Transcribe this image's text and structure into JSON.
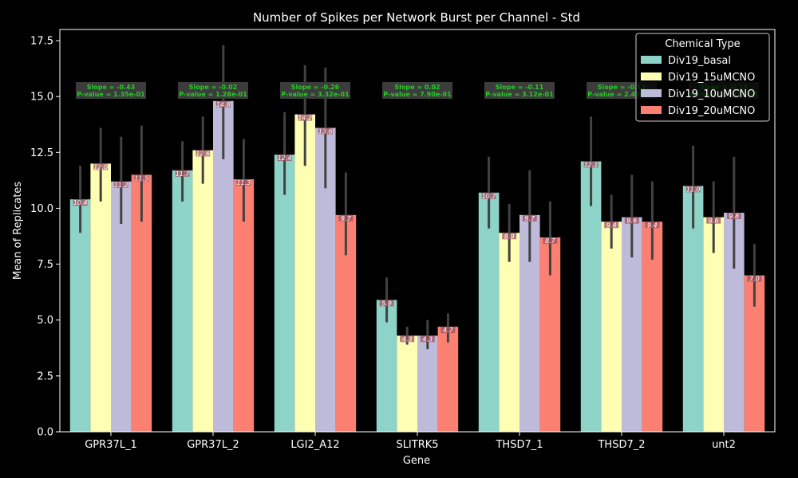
{
  "chart_data": {
    "type": "bar",
    "title": "Number of Spikes per Network Burst per Channel - Std",
    "xlabel": "Gene",
    "ylabel": "Mean of Replicates",
    "categories": [
      "GPR37L_1",
      "GPR37L_2",
      "LGI2_A12",
      "SLITRK5",
      "THSD7_1",
      "THSD7_2",
      "unt2"
    ],
    "ylim": [
      0,
      18
    ],
    "yticks": [
      0.0,
      2.5,
      5.0,
      7.5,
      10.0,
      12.5,
      15.0,
      17.5
    ],
    "ytick_labels": [
      "0.0",
      "2.5",
      "5.0",
      "7.5",
      "10.0",
      "12.5",
      "15.0",
      "17.5"
    ],
    "legend": {
      "title": "Chemical Type",
      "position": "upper-right"
    },
    "series": [
      {
        "name": "Div19_basal",
        "color": "#8dd3c7",
        "values": [
          10.4,
          11.7,
          12.4,
          5.9,
          10.7,
          12.1,
          11.0
        ],
        "labels": [
          "10.4",
          "11.7",
          "12.4",
          "5.9",
          "10.7",
          "12.1",
          "11.0"
        ],
        "err_low": [
          8.9,
          10.3,
          10.6,
          4.9,
          9.1,
          10.1,
          9.1
        ],
        "err_high": [
          11.9,
          13.0,
          14.3,
          6.9,
          12.3,
          14.1,
          12.8
        ]
      },
      {
        "name": "Div19_15uMCNO",
        "color": "#ffffb3",
        "values": [
          12.0,
          12.6,
          14.2,
          4.3,
          8.9,
          9.4,
          9.6
        ],
        "labels": [
          "12.0",
          "12.6",
          "14.2",
          "4.3",
          "8.9",
          "9.4",
          "9.6"
        ],
        "err_low": [
          10.3,
          11.1,
          11.9,
          3.9,
          7.6,
          8.2,
          8.0
        ],
        "err_high": [
          13.6,
          14.1,
          16.4,
          4.7,
          10.2,
          10.6,
          11.2
        ]
      },
      {
        "name": "Div19_10uMCNO",
        "color": "#bebada",
        "values": [
          11.2,
          14.8,
          13.6,
          4.3,
          9.7,
          9.6,
          9.8
        ],
        "labels": [
          "11.2",
          "14.8",
          "13.6",
          "4.3",
          "9.7",
          "9.6",
          "9.8"
        ],
        "err_low": [
          9.3,
          12.2,
          10.9,
          3.7,
          7.6,
          7.8,
          7.3
        ],
        "err_high": [
          13.2,
          17.3,
          16.3,
          5.0,
          11.7,
          11.5,
          12.3
        ]
      },
      {
        "name": "Div19_20uMCNO",
        "color": "#fb8072",
        "values": [
          11.5,
          11.3,
          9.7,
          4.7,
          8.7,
          9.4,
          7.0
        ],
        "labels": [
          "11.5",
          "11.3",
          "9.7",
          "4.7",
          "8.7",
          "9.4",
          "7.0"
        ],
        "err_low": [
          9.4,
          9.4,
          7.9,
          4.0,
          7.0,
          7.7,
          5.6
        ],
        "err_high": [
          13.7,
          13.1,
          11.6,
          5.3,
          10.3,
          11.2,
          8.4
        ]
      }
    ],
    "annotations": [
      {
        "category": "GPR37L_1",
        "slope": "Slope = -0.43",
        "pvalue": "P-value = 1.35e-01"
      },
      {
        "category": "GPR37L_2",
        "slope": "Slope = -0.02",
        "pvalue": "P-value = 1.28e-01"
      },
      {
        "category": "LGI2_A12",
        "slope": "Slope = -0.26",
        "pvalue": "P-value = 3.32e-01"
      },
      {
        "category": "SLITRK5",
        "slope": "Slope = 0.02",
        "pvalue": "P-value = 7.90e-01"
      },
      {
        "category": "THSD7_1",
        "slope": "Slope = -0.11",
        "pvalue": "P-value = 3.12e-01"
      },
      {
        "category": "THSD7_2",
        "slope": "Slope = -0.12",
        "pvalue": "P-value = 2.45e-01"
      },
      {
        "category": "unt2",
        "slope": "Slope = -0.15",
        "pvalue": "P-value = 4.11e-01"
      }
    ]
  }
}
